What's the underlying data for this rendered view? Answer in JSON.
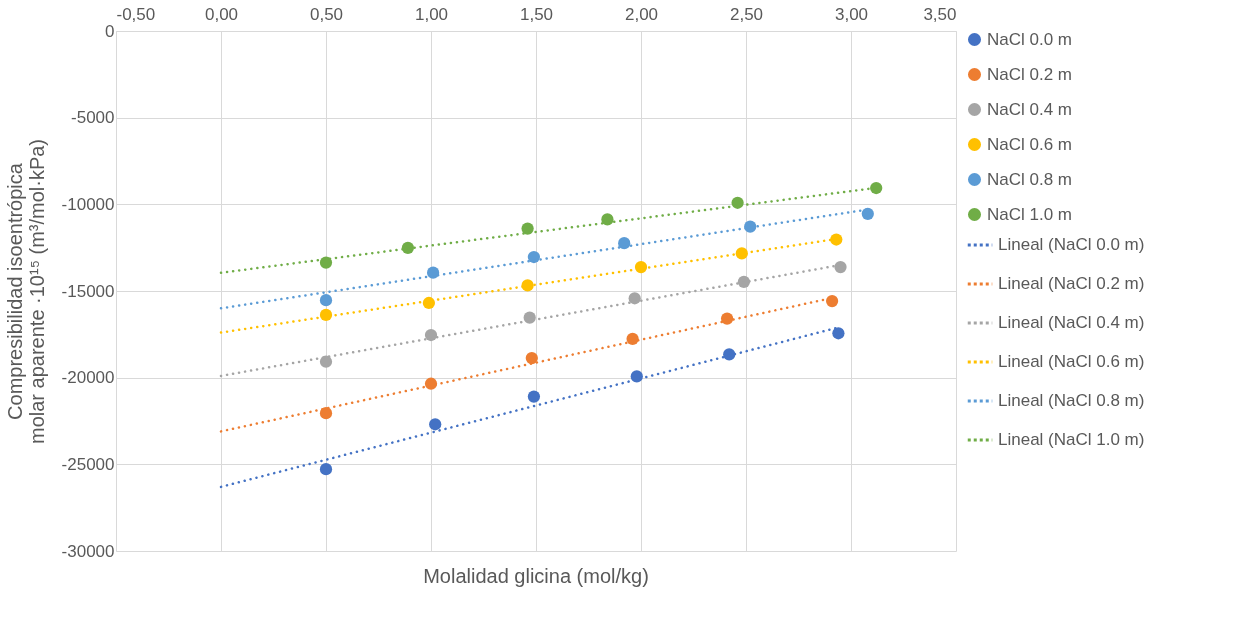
{
  "chart_data": {
    "type": "scatter",
    "xlabel": "Molalidad glicina (mol/kg)",
    "ylabel": "Compresibilidad isoentrópica molar aparente ·10¹⁵  (m³/mol·kPa)",
    "xlim": [
      -0.5,
      3.5
    ],
    "xticks": [
      {
        "value": -0.5,
        "label": "-0,50"
      },
      {
        "value": 0,
        "label": "0,00"
      },
      {
        "value": 0.5,
        "label": "0,50"
      },
      {
        "value": 1,
        "label": "1,00"
      },
      {
        "value": 1.5,
        "label": "1,50"
      },
      {
        "value": 2,
        "label": "2,00"
      },
      {
        "value": 2.5,
        "label": "2,50"
      },
      {
        "value": 3,
        "label": "3,00"
      },
      {
        "value": 3.5,
        "label": "3,50"
      }
    ],
    "ylim": [
      -30000,
      0
    ],
    "yticks": [
      -30000,
      -25000,
      -20000,
      -15000,
      -10000,
      -5000,
      0
    ],
    "grid": true,
    "legend": "right",
    "series": [
      {
        "name": "NaCl 0.0 m",
        "marker": "circle",
        "color": "#4472c4",
        "x": [
          0.5,
          1.02,
          1.49,
          1.98,
          2.42,
          2.94
        ],
        "values": [
          -25280,
          -22690,
          -21090,
          -19930,
          -18660,
          -17440
        ]
      },
      {
        "name": "NaCl 0.2 m",
        "marker": "circle",
        "color": "#ed7d31",
        "x": [
          0.5,
          1.0,
          1.48,
          1.96,
          2.41,
          2.91
        ],
        "values": [
          -22050,
          -20350,
          -18870,
          -17760,
          -16590,
          -15580
        ]
      },
      {
        "name": "NaCl 0.4 m",
        "marker": "circle",
        "color": "#a5a5a5",
        "x": [
          0.5,
          1.0,
          1.47,
          1.97,
          2.49,
          2.95
        ],
        "values": [
          -19080,
          -17540,
          -16540,
          -15420,
          -14470,
          -13620
        ]
      },
      {
        "name": "NaCl 0.6 m",
        "marker": "circle",
        "color": "#ffc000",
        "x": [
          0.5,
          0.99,
          1.46,
          2.0,
          2.48,
          2.93
        ],
        "values": [
          -16380,
          -15690,
          -14680,
          -13620,
          -12830,
          -12030
        ]
      },
      {
        "name": "NaCl 0.8 m",
        "marker": "circle",
        "color": "#5b9bd5",
        "x": [
          0.5,
          1.01,
          1.49,
          1.92,
          2.52,
          3.08
        ],
        "values": [
          -15530,
          -13940,
          -13040,
          -12240,
          -11290,
          -10550
        ]
      },
      {
        "name": "NaCl 1.0 m",
        "marker": "circle",
        "color": "#70ad47",
        "x": [
          0.5,
          0.89,
          1.46,
          1.84,
          2.46,
          3.12
        ],
        "values": [
          -13360,
          -12510,
          -11400,
          -10870,
          -9910,
          -9060
        ]
      },
      {
        "name": "Lineal (NaCl 0.0 m)",
        "type": "line",
        "line_style": "dotted",
        "color": "#4472c4",
        "x": [
          0,
          2.94
        ],
        "values": [
          -26300,
          -17100
        ]
      },
      {
        "name": "Lineal (NaCl 0.2 m)",
        "type": "line",
        "line_style": "dotted",
        "color": "#ed7d31",
        "x": [
          0,
          2.91
        ],
        "values": [
          -23100,
          -15400
        ]
      },
      {
        "name": "Lineal (NaCl 0.4 m)",
        "type": "line",
        "line_style": "dotted",
        "color": "#a5a5a5",
        "x": [
          0,
          2.95
        ],
        "values": [
          -19900,
          -13500
        ]
      },
      {
        "name": "Lineal (NaCl 0.6 m)",
        "type": "line",
        "line_style": "dotted",
        "color": "#ffc000",
        "x": [
          0,
          2.93
        ],
        "values": [
          -17400,
          -12000
        ]
      },
      {
        "name": "Lineal (NaCl 0.8 m)",
        "type": "line",
        "line_style": "dotted",
        "color": "#5b9bd5",
        "x": [
          0,
          3.08
        ],
        "values": [
          -16000,
          -10300
        ]
      },
      {
        "name": "Lineal (NaCl 1.0 m)",
        "type": "line",
        "line_style": "dotted",
        "color": "#70ad47",
        "x": [
          0,
          3.12
        ],
        "values": [
          -13950,
          -9050
        ]
      }
    ]
  }
}
